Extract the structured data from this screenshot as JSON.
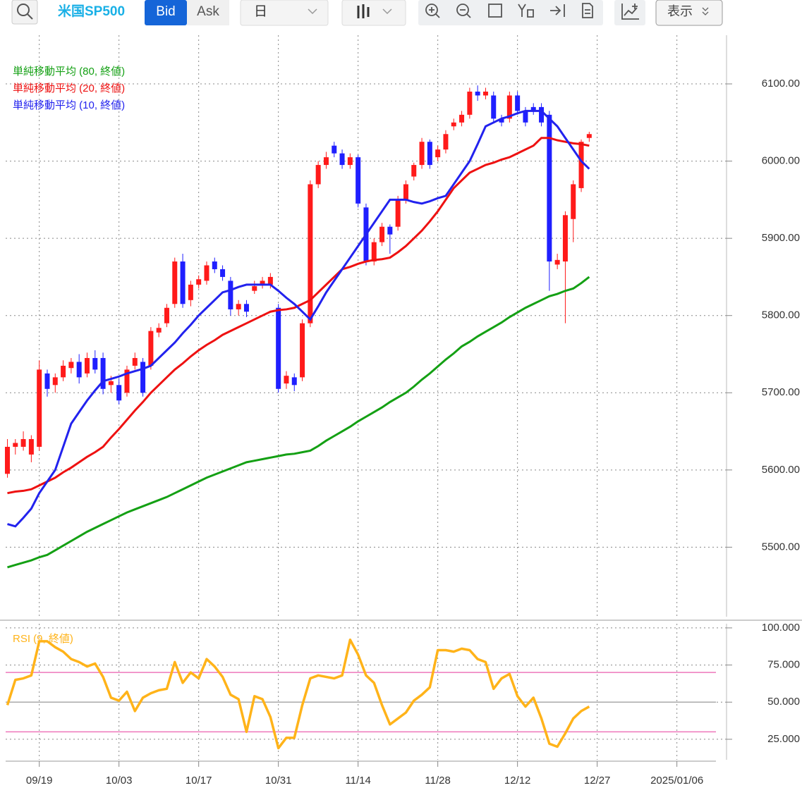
{
  "toolbar": {
    "symbol": "米国SP500",
    "bid": "Bid",
    "ask": "Ask",
    "period": "日",
    "view": "表示"
  },
  "chart_data": [
    {
      "type": "candlestick",
      "x": [
        0,
        1,
        2,
        3,
        4,
        5,
        6,
        7,
        8,
        9,
        10,
        11,
        12,
        13,
        14,
        15,
        16,
        17,
        18,
        19,
        20,
        21,
        22,
        23,
        24,
        25,
        26,
        27,
        28,
        29,
        30,
        31,
        32,
        33,
        34,
        35,
        36,
        37,
        38,
        39,
        40,
        41,
        42,
        43,
        44,
        45,
        46,
        47,
        48,
        49,
        50,
        51,
        52,
        53,
        54,
        55,
        56,
        57,
        58,
        59,
        60,
        61,
        62,
        63,
        64,
        65,
        66,
        67,
        68,
        69,
        70,
        71,
        72,
        73
      ],
      "open": [
        5595,
        5630,
        5630,
        5620,
        5630,
        5725,
        5710,
        5720,
        5732,
        5740,
        5725,
        5745,
        5745,
        5710,
        5710,
        5700,
        5735,
        5740,
        5735,
        5778,
        5790,
        5815,
        5870,
        5820,
        5840,
        5845,
        5870,
        5860,
        5845,
        5808,
        5815,
        5832,
        5840,
        5840,
        5810,
        5712,
        5720,
        5720,
        5790,
        5970,
        5995,
        6020,
        6010,
        5995,
        6005,
        5940,
        5870,
        5895,
        5915,
        5915,
        5950,
        5980,
        5995,
        6025,
        6005,
        6015,
        6045,
        6050,
        6060,
        6090,
        6085,
        6085,
        6055,
        6055,
        6085,
        6065,
        6070,
        6070,
        6060,
        5866,
        5870,
        5925,
        5965,
        6030
      ],
      "high": [
        5640,
        5640,
        5650,
        5645,
        5742,
        5730,
        5725,
        5742,
        5745,
        5750,
        5752,
        5755,
        5752,
        5722,
        5718,
        5735,
        5752,
        5745,
        5785,
        5790,
        5815,
        5875,
        5880,
        5845,
        5852,
        5870,
        5875,
        5865,
        5850,
        5820,
        5820,
        5845,
        5850,
        5855,
        5815,
        5728,
        5725,
        5795,
        5975,
        6000,
        6012,
        6025,
        6015,
        6010,
        6008,
        5945,
        5900,
        5920,
        5918,
        5955,
        5975,
        5998,
        6030,
        6028,
        6020,
        6040,
        6055,
        6065,
        6095,
        6098,
        6095,
        6090,
        6060,
        6090,
        6090,
        6070,
        6075,
        6075,
        6065,
        5880,
        5935,
        5975,
        6028,
        6038
      ],
      "low": [
        5590,
        5620,
        5625,
        5610,
        5625,
        5695,
        5700,
        5715,
        5725,
        5712,
        5720,
        5725,
        5698,
        5700,
        5685,
        5695,
        5730,
        5695,
        5730,
        5772,
        5785,
        5810,
        5810,
        5812,
        5835,
        5840,
        5855,
        5845,
        5800,
        5800,
        5798,
        5828,
        5835,
        5835,
        5700,
        5705,
        5702,
        5715,
        5785,
        5965,
        5990,
        6005,
        5990,
        5990,
        5940,
        5865,
        5865,
        5890,
        5880,
        5910,
        5945,
        5975,
        5990,
        5990,
        6000,
        6010,
        6040,
        6045,
        6055,
        6078,
        6080,
        6050,
        6045,
        6050,
        6060,
        6045,
        6060,
        6045,
        5832,
        5860,
        5790,
        5895,
        5960,
        6025
      ],
      "close": [
        5630,
        5635,
        5640,
        5640,
        5730,
        5705,
        5720,
        5735,
        5740,
        5720,
        5745,
        5730,
        5705,
        5715,
        5690,
        5730,
        5745,
        5700,
        5780,
        5784,
        5810,
        5870,
        5815,
        5840,
        5847,
        5865,
        5860,
        5850,
        5808,
        5815,
        5805,
        5838,
        5845,
        5850,
        5705,
        5722,
        5710,
        5790,
        5970,
        5995,
        6005,
        6010,
        5995,
        6005,
        5945,
        5870,
        5895,
        5915,
        5905,
        5950,
        5970,
        5995,
        6025,
        5995,
        6015,
        6035,
        6050,
        6060,
        6090,
        6085,
        6090,
        6055,
        6050,
        6085,
        6065,
        6050,
        6065,
        6050,
        5870,
        5872,
        5930,
        5970,
        6025,
        6035
      ],
      "series": [
        {
          "name": "単純移動平均 (80, 終値)",
          "color": "#14a014",
          "values": [
            5474,
            5477,
            5480,
            5483,
            5487,
            5490,
            5496,
            5502,
            5508,
            5514,
            5520,
            5525,
            5530,
            5535,
            5540,
            5545,
            5549,
            5553,
            5557,
            5561,
            5565,
            5570,
            5575,
            5580,
            5585,
            5590,
            5594,
            5598,
            5602,
            5606,
            5610,
            5612,
            5614,
            5616,
            5618,
            5620,
            5621,
            5623,
            5625,
            5631,
            5638,
            5644,
            5650,
            5656,
            5663,
            5669,
            5675,
            5681,
            5688,
            5694,
            5700,
            5708,
            5717,
            5725,
            5734,
            5743,
            5751,
            5760,
            5766,
            5773,
            5779,
            5785,
            5791,
            5798,
            5804,
            5810,
            5815,
            5820,
            5825,
            5828,
            5832,
            5835,
            5842,
            5850
          ]
        },
        {
          "name": "単純移動平均 (20, 終値)",
          "color": "#ee1111",
          "values": [
            5570,
            5572,
            5573,
            5575,
            5580,
            5585,
            5590,
            5597,
            5603,
            5610,
            5617,
            5623,
            5630,
            5642,
            5653,
            5665,
            5677,
            5688,
            5700,
            5710,
            5720,
            5730,
            5738,
            5747,
            5755,
            5762,
            5768,
            5775,
            5780,
            5785,
            5790,
            5795,
            5800,
            5805,
            5807,
            5808,
            5810,
            5815,
            5820,
            5830,
            5840,
            5850,
            5860,
            5863,
            5867,
            5870,
            5872,
            5873,
            5875,
            5882,
            5890,
            5900,
            5910,
            5922,
            5935,
            5950,
            5965,
            5975,
            5985,
            5990,
            5995,
            5998,
            6002,
            6005,
            6010,
            6015,
            6020,
            6030,
            6030,
            6027,
            6025,
            6023,
            6022,
            6020
          ]
        },
        {
          "name": "単純移動平均 (10, 終値)",
          "color": "#2222ee",
          "values": [
            5530,
            5527,
            5538,
            5550,
            5570,
            5585,
            5600,
            5630,
            5660,
            5675,
            5690,
            5703,
            5715,
            5718,
            5721,
            5725,
            5728,
            5731,
            5735,
            5745,
            5755,
            5765,
            5777,
            5788,
            5800,
            5810,
            5820,
            5830,
            5833,
            5837,
            5840,
            5840,
            5840,
            5840,
            5832,
            5823,
            5815,
            5805,
            5795,
            5812,
            5830,
            5845,
            5860,
            5875,
            5890,
            5905,
            5920,
            5935,
            5950,
            5950,
            5950,
            5947,
            5945,
            5948,
            5952,
            5955,
            5970,
            5985,
            6000,
            6022,
            6045,
            6050,
            6055,
            6058,
            6062,
            6065,
            6065,
            6065,
            6055,
            6045,
            6030,
            6015,
            6000,
            5990
          ]
        }
      ],
      "up_color": "#ff1a1a",
      "down_color": "#1f1fff",
      "xlim": [
        -0.22,
        88.9
      ],
      "xticks": [
        {
          "value": 4,
          "label": "09/19"
        },
        {
          "value": 14,
          "label": "10/03"
        },
        {
          "value": 24,
          "label": "10/17"
        },
        {
          "value": 34,
          "label": "10/31"
        },
        {
          "value": 44,
          "label": "11/14"
        },
        {
          "value": 54,
          "label": "11/28"
        },
        {
          "value": 64,
          "label": "12/12"
        },
        {
          "value": 74,
          "label": "12/27"
        },
        {
          "value": 84,
          "label": "2025/01/06"
        }
      ],
      "ylim": [
        5410,
        6163
      ],
      "yticks": [
        {
          "value": 5500,
          "label": "5500.00"
        },
        {
          "value": 5600,
          "label": "5600.00"
        },
        {
          "value": 5700,
          "label": "5700.00"
        },
        {
          "value": 5800,
          "label": "5800.00"
        },
        {
          "value": 5900,
          "label": "5900.00"
        },
        {
          "value": 6000,
          "label": "6000.00"
        },
        {
          "value": 6100,
          "label": "6100.00"
        }
      ],
      "grid": true
    },
    {
      "type": "line",
      "series": [
        {
          "name": "RSI (9, 終値)",
          "color": "#ffb319",
          "values": [
            48,
            65,
            66,
            68,
            91,
            91,
            87,
            84,
            79,
            77,
            74,
            76,
            67,
            53,
            51,
            57,
            44,
            53,
            56,
            58,
            59,
            77,
            63,
            70,
            66,
            79,
            74,
            67,
            55,
            52,
            30,
            54,
            52,
            40,
            19,
            26,
            26,
            48,
            66,
            68,
            67,
            66,
            68,
            92,
            82,
            68,
            63,
            48,
            35,
            39,
            43,
            51,
            55,
            60,
            85,
            85,
            84,
            86,
            85,
            79,
            77,
            59,
            66,
            69,
            54,
            47,
            53,
            39,
            22,
            20,
            29,
            39,
            44,
            47
          ]
        }
      ],
      "levels": [
        {
          "value": 70,
          "color": "#ee77bb"
        },
        {
          "value": 50,
          "color": "#aaaaaa"
        },
        {
          "value": 30,
          "color": "#ee77bb"
        }
      ],
      "ylim": [
        11.2,
        102.8
      ],
      "yticks": [
        {
          "value": 25,
          "label": "25.000"
        },
        {
          "value": 50,
          "label": "50.000"
        },
        {
          "value": 75,
          "label": "75.000"
        },
        {
          "value": 100,
          "label": "100.000"
        }
      ],
      "grid": true
    }
  ]
}
